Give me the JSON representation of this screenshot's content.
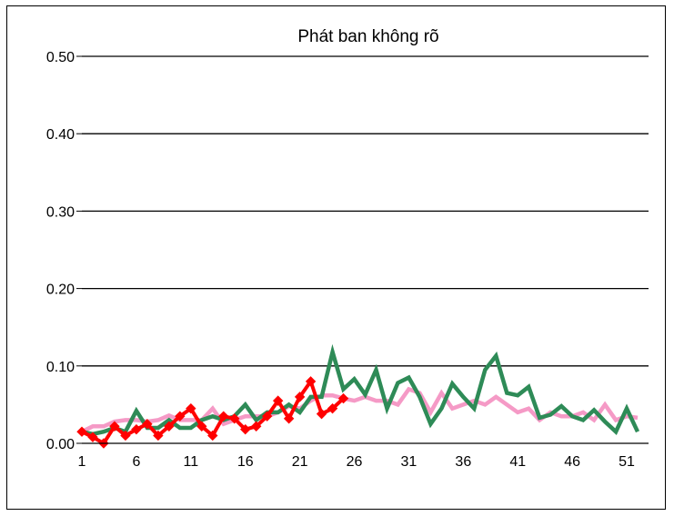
{
  "chart_data": {
    "type": "line",
    "title": "Phát ban không rõ",
    "xlabel": "",
    "ylabel": "",
    "ylim": [
      0,
      0.5
    ],
    "xlim": [
      1,
      53
    ],
    "grid": true,
    "legend": "none",
    "y_ticks": [
      "0.00",
      "0.10",
      "0.20",
      "0.30",
      "0.40",
      "0.50"
    ],
    "x_ticks": [
      "1",
      "6",
      "11",
      "16",
      "21",
      "26",
      "31",
      "36",
      "41",
      "46",
      "51"
    ],
    "series": [
      {
        "color": "#f59ac6",
        "marker": "none",
        "x": [
          1,
          2,
          3,
          4,
          5,
          6,
          7,
          8,
          9,
          10,
          11,
          12,
          13,
          14,
          15,
          16,
          17,
          18,
          19,
          20,
          21,
          22,
          23,
          24,
          25,
          26,
          27,
          28,
          29,
          30,
          31,
          32,
          33,
          34,
          35,
          36,
          37,
          38,
          39,
          40,
          41,
          42,
          43,
          44,
          45,
          46,
          47,
          48,
          49,
          50,
          51,
          52
        ],
        "values": [
          0.015,
          0.022,
          0.022,
          0.028,
          0.03,
          0.03,
          0.028,
          0.03,
          0.036,
          0.03,
          0.03,
          0.03,
          0.045,
          0.025,
          0.03,
          0.035,
          0.035,
          0.035,
          0.04,
          0.048,
          0.045,
          0.055,
          0.062,
          0.062,
          0.058,
          0.055,
          0.06,
          0.055,
          0.055,
          0.05,
          0.07,
          0.065,
          0.04,
          0.065,
          0.045,
          0.05,
          0.055,
          0.05,
          0.06,
          0.05,
          0.04,
          0.045,
          0.03,
          0.04,
          0.035,
          0.035,
          0.04,
          0.03,
          0.05,
          0.03,
          0.035,
          0.033
        ]
      },
      {
        "color": "#2e8b57",
        "marker": "none",
        "x": [
          1,
          2,
          3,
          4,
          5,
          6,
          7,
          8,
          9,
          10,
          11,
          12,
          13,
          14,
          15,
          16,
          17,
          18,
          19,
          20,
          21,
          22,
          23,
          24,
          25,
          26,
          27,
          28,
          29,
          30,
          31,
          32,
          33,
          34,
          35,
          36,
          37,
          38,
          39,
          40,
          41,
          42,
          43,
          44,
          45,
          46,
          47,
          48,
          49,
          50,
          51,
          52
        ],
        "values": [
          0.015,
          0.012,
          0.015,
          0.02,
          0.015,
          0.042,
          0.02,
          0.02,
          0.03,
          0.02,
          0.02,
          0.03,
          0.035,
          0.03,
          0.035,
          0.05,
          0.03,
          0.04,
          0.04,
          0.05,
          0.04,
          0.06,
          0.06,
          0.118,
          0.07,
          0.083,
          0.063,
          0.095,
          0.045,
          0.078,
          0.085,
          0.06,
          0.025,
          0.045,
          0.077,
          0.06,
          0.045,
          0.095,
          0.113,
          0.065,
          0.062,
          0.073,
          0.033,
          0.037,
          0.048,
          0.035,
          0.03,
          0.043,
          0.028,
          0.015,
          0.045,
          0.015
        ]
      },
      {
        "color": "#ff0000",
        "marker": "diamond",
        "x": [
          1,
          2,
          3,
          4,
          5,
          6,
          7,
          8,
          9,
          10,
          11,
          12,
          13,
          14,
          15,
          16,
          17,
          18,
          19,
          20,
          21,
          22,
          23,
          24,
          25
        ],
        "values": [
          0.015,
          0.008,
          0.0,
          0.022,
          0.01,
          0.018,
          0.025,
          0.01,
          0.022,
          0.035,
          0.045,
          0.022,
          0.01,
          0.035,
          0.032,
          0.018,
          0.022,
          0.035,
          0.055,
          0.032,
          0.06,
          0.08,
          0.038,
          0.045,
          0.058
        ]
      }
    ]
  }
}
